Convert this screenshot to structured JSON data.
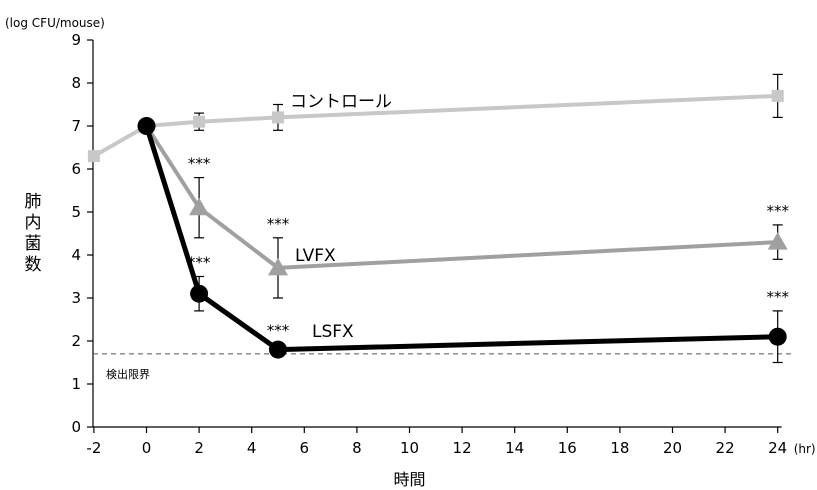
{
  "chart_data": {
    "type": "line",
    "title": "",
    "xlabel": "時間",
    "x_unit": "(hr)",
    "ylabel": "肺内菌数",
    "y_unit": "(log CFU/mouse)",
    "xlim": [
      -2,
      24
    ],
    "ylim": [
      0,
      9
    ],
    "x_ticks": [
      "-2",
      "0",
      "2",
      "4",
      "6",
      "8",
      "10",
      "12",
      "14",
      "16",
      "18",
      "20",
      "22",
      "24"
    ],
    "y_ticks": [
      "0",
      "1",
      "2",
      "3",
      "4",
      "5",
      "6",
      "7",
      "8",
      "9"
    ],
    "grid": false,
    "detection_limit": {
      "label": "検出限界",
      "y": 1.7
    },
    "series": [
      {
        "name": "コントロール",
        "color": "#c8c8c8",
        "marker": "square",
        "x": [
          -2,
          0,
          2,
          5,
          24
        ],
        "y": [
          6.3,
          7.0,
          7.1,
          7.2,
          7.7
        ],
        "error": [
          0,
          0,
          0.2,
          0.3,
          0.5
        ],
        "significance": [
          "",
          "",
          "",
          "",
          ""
        ]
      },
      {
        "name": "LVFX",
        "color": "#a0a0a0",
        "marker": "triangle",
        "x": [
          0,
          2,
          5,
          24
        ],
        "y": [
          7.0,
          5.1,
          3.7,
          4.3
        ],
        "error": [
          0,
          0.7,
          0.7,
          0.4
        ],
        "significance": [
          "",
          "***",
          "***",
          "***"
        ]
      },
      {
        "name": "LSFX",
        "color": "#000000",
        "marker": "circle",
        "x": [
          0,
          2,
          5,
          24
        ],
        "y": [
          7.0,
          3.1,
          1.8,
          2.1
        ],
        "error": [
          0,
          0.4,
          0,
          0.6
        ],
        "significance": [
          "",
          "***",
          "***",
          "***"
        ]
      }
    ]
  }
}
